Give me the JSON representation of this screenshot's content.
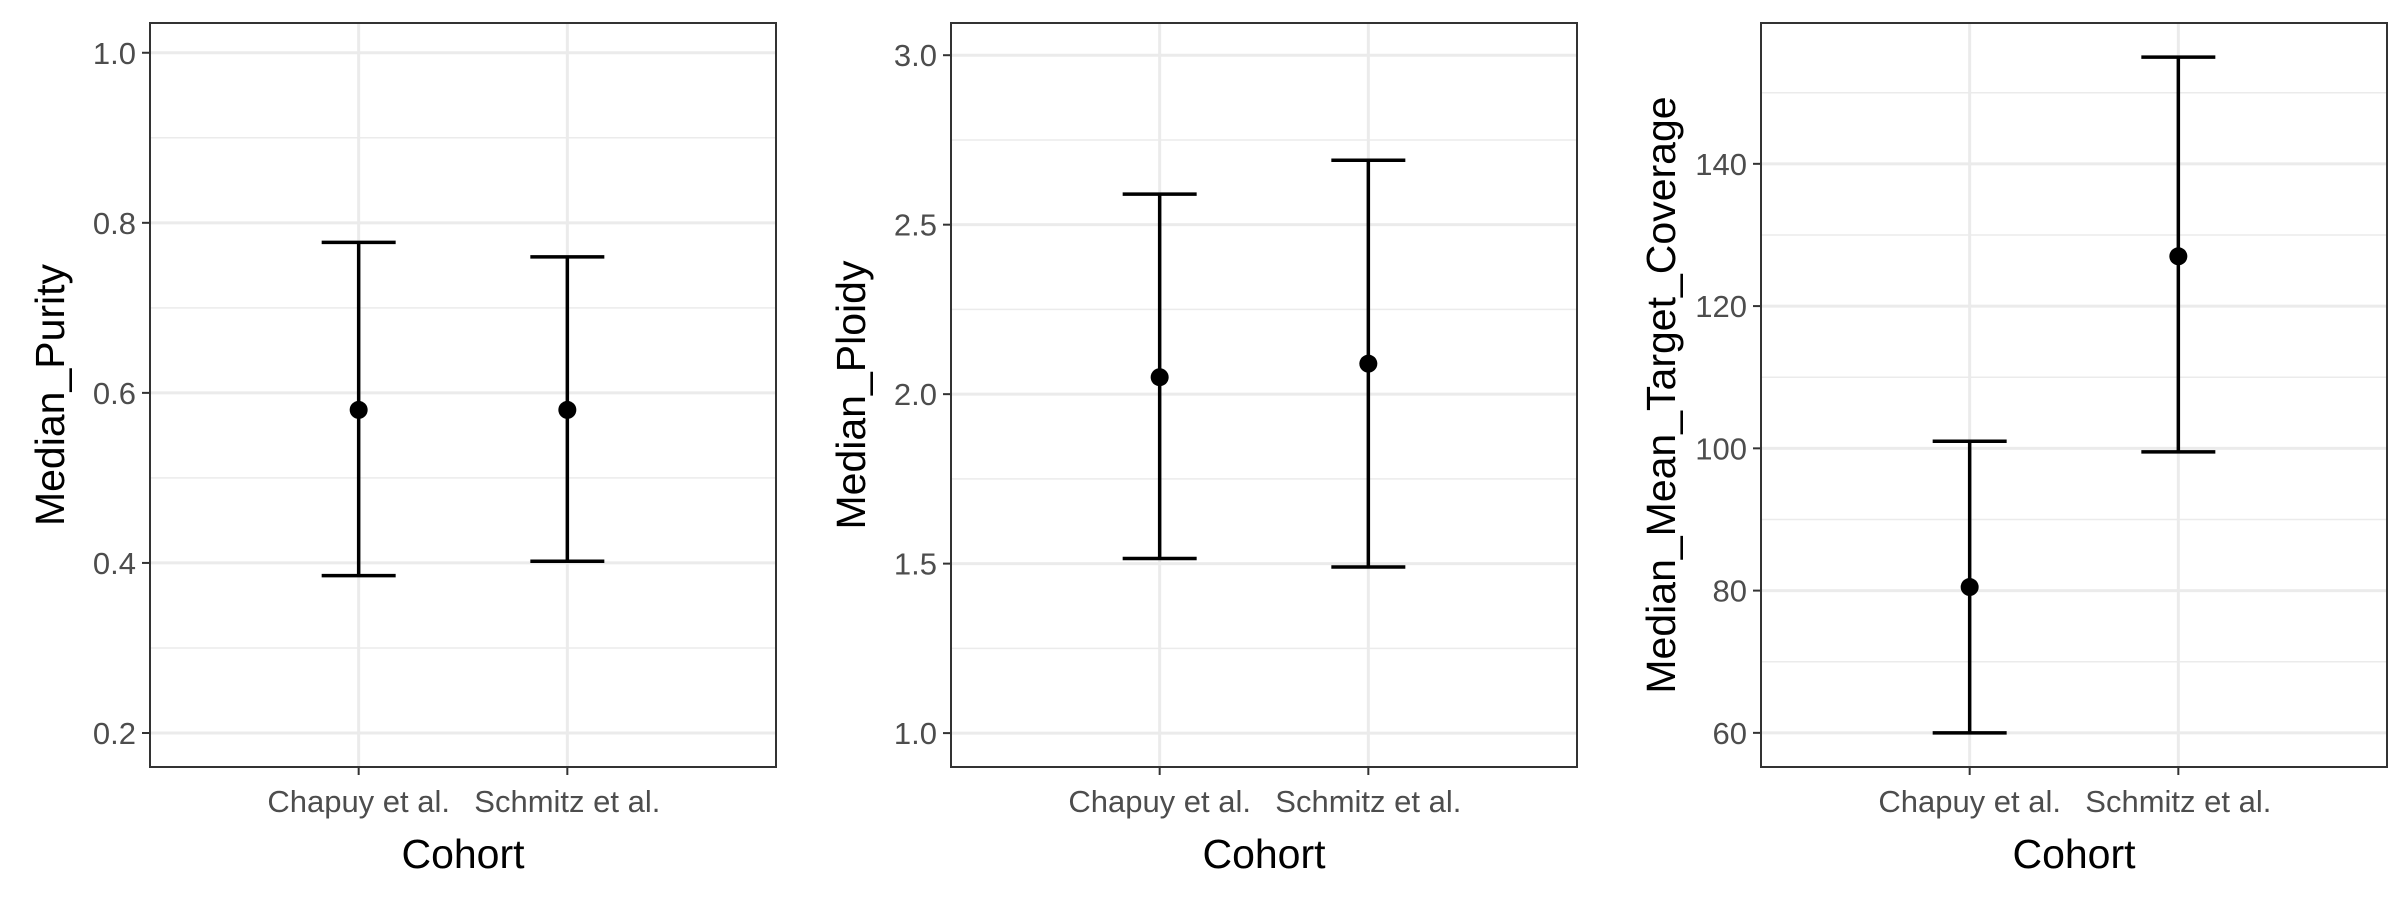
{
  "chart_data": [
    {
      "type": "errorbar",
      "xlabel": "Cohort",
      "ylabel": "Median_Purity",
      "categories": [
        "Chapuy et al.",
        "Schmitz et al."
      ],
      "points": [
        {
          "category": "Chapuy et al.",
          "y": 0.58,
          "ymin": 0.385,
          "ymax": 0.777
        },
        {
          "category": "Schmitz et al.",
          "y": 0.58,
          "ymin": 0.402,
          "ymax": 0.76
        }
      ],
      "ylim": [
        0.16,
        1.035
      ],
      "yticks": [
        0.2,
        0.4,
        0.6,
        0.8,
        1.0
      ],
      "ytick_labels": [
        "0.2",
        "0.4",
        "0.6",
        "0.8",
        "1.0"
      ],
      "grid": true,
      "colors": {
        "mark": "#000000",
        "grid": "#ebebeb",
        "border": "#333333"
      }
    },
    {
      "type": "errorbar",
      "xlabel": "Cohort",
      "ylabel": "Median_Ploidy",
      "categories": [
        "Chapuy et al.",
        "Schmitz et al."
      ],
      "points": [
        {
          "category": "Chapuy et al.",
          "y": 2.05,
          "ymin": 1.515,
          "ymax": 2.59
        },
        {
          "category": "Schmitz et al.",
          "y": 2.09,
          "ymin": 1.49,
          "ymax": 2.69
        }
      ],
      "ylim": [
        0.9,
        3.095
      ],
      "yticks": [
        1.0,
        1.5,
        2.0,
        2.5,
        3.0
      ],
      "ytick_labels": [
        "1.0",
        "1.5",
        "2.0",
        "2.5",
        "3.0"
      ],
      "grid": true,
      "colors": {
        "mark": "#000000",
        "grid": "#ebebeb",
        "border": "#333333"
      }
    },
    {
      "type": "errorbar",
      "xlabel": "Cohort",
      "ylabel": "Median_Mean_Target_Coverage",
      "categories": [
        "Chapuy et al.",
        "Schmitz et al."
      ],
      "points": [
        {
          "category": "Chapuy et al.",
          "y": 80.5,
          "ymin": 60,
          "ymax": 101
        },
        {
          "category": "Schmitz et al.",
          "y": 127,
          "ymin": 99.5,
          "ymax": 155
        }
      ],
      "ylim": [
        55.2,
        159.8
      ],
      "yticks": [
        60,
        80,
        100,
        120,
        140
      ],
      "ytick_labels": [
        "60",
        "80",
        "100",
        "120",
        "140"
      ],
      "grid": true,
      "colors": {
        "mark": "#000000",
        "grid": "#ebebeb",
        "border": "#333333"
      }
    }
  ]
}
